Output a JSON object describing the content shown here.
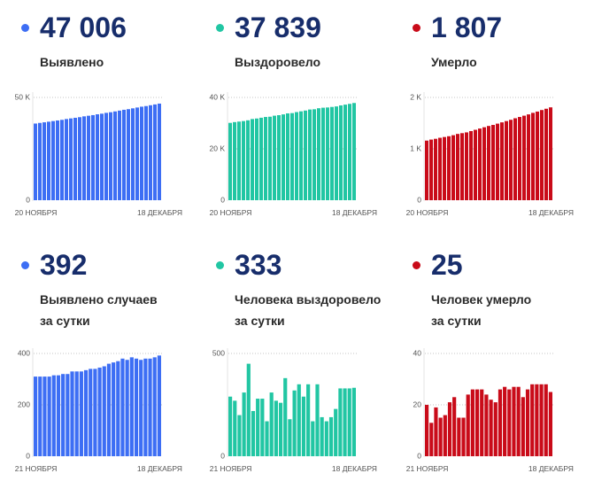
{
  "panels": [
    {
      "color": "#3d6ef4",
      "value": "47 006",
      "label_lines": [
        "Выявлено"
      ]
    },
    {
      "color": "#21c6a3",
      "value": "37 839",
      "label_lines": [
        "Выздоровело"
      ]
    },
    {
      "color": "#c90b19",
      "value": "1 807",
      "label_lines": [
        "Умерло"
      ]
    },
    {
      "color": "#3d6ef4",
      "value": "392",
      "label_lines": [
        "Выявлено случаев",
        "за сутки"
      ]
    },
    {
      "color": "#21c6a3",
      "value": "333",
      "label_lines": [
        "Человека выздоровело",
        "за сутки"
      ]
    },
    {
      "color": "#c90b19",
      "value": "25",
      "label_lines": [
        "Человек умерло",
        "за сутки"
      ]
    }
  ],
  "chart_data": [
    {
      "type": "bar",
      "color": "#3d6ef4",
      "ylim": [
        0,
        50000
      ],
      "y_ticks": [
        {
          "value": 50000,
          "label": "50 K"
        },
        {
          "value": 0,
          "label": "0"
        }
      ],
      "x_tick_labels": [
        "20 НОЯБРЯ",
        "18 ДЕКАБРЯ"
      ],
      "values": [
        37300,
        37600,
        37900,
        38200,
        38500,
        38800,
        39100,
        39500,
        39800,
        40100,
        40400,
        40800,
        41100,
        41400,
        41800,
        42100,
        42500,
        42800,
        43200,
        43600,
        44000,
        44300,
        44700,
        45100,
        45500,
        45800,
        46200,
        46600,
        47006
      ]
    },
    {
      "type": "bar",
      "color": "#21c6a3",
      "ylim": [
        0,
        40000
      ],
      "y_ticks": [
        {
          "value": 40000,
          "label": "40 K"
        },
        {
          "value": 20000,
          "label": "20 K"
        },
        {
          "value": 0,
          "label": "0"
        }
      ],
      "x_tick_labels": [
        "20 НОЯБРЯ",
        "18 ДЕКАБРЯ"
      ],
      "values": [
        30100,
        30400,
        30600,
        30800,
        31100,
        31600,
        31800,
        32100,
        32400,
        32500,
        32900,
        33100,
        33400,
        33800,
        33900,
        34300,
        34600,
        34900,
        35300,
        35400,
        35800,
        36000,
        36100,
        36300,
        36500,
        36900,
        37200,
        37500,
        37839
      ]
    },
    {
      "type": "bar",
      "color": "#c90b19",
      "ylim": [
        0,
        2000
      ],
      "y_ticks": [
        {
          "value": 2000,
          "label": "2 K"
        },
        {
          "value": 1000,
          "label": "1 K"
        },
        {
          "value": 0,
          "label": "0"
        }
      ],
      "x_tick_labels": [
        "20 НОЯБРЯ",
        "18 ДЕКАБРЯ"
      ],
      "values": [
        1160,
        1180,
        1195,
        1215,
        1230,
        1245,
        1265,
        1290,
        1305,
        1320,
        1345,
        1370,
        1395,
        1420,
        1445,
        1465,
        1490,
        1515,
        1540,
        1565,
        1595,
        1620,
        1645,
        1670,
        1700,
        1725,
        1755,
        1780,
        1807
      ]
    },
    {
      "type": "bar",
      "color": "#3d6ef4",
      "ylim": [
        0,
        400
      ],
      "y_ticks": [
        {
          "value": 400,
          "label": "400"
        },
        {
          "value": 200,
          "label": "200"
        },
        {
          "value": 0,
          "label": "0"
        }
      ],
      "x_tick_labels": [
        "21 НОЯБРЯ",
        "18 ДЕКАБРЯ"
      ],
      "values": [
        310,
        310,
        310,
        310,
        315,
        315,
        320,
        320,
        330,
        330,
        330,
        335,
        340,
        340,
        345,
        350,
        360,
        365,
        370,
        380,
        375,
        385,
        380,
        375,
        380,
        380,
        385,
        392
      ]
    },
    {
      "type": "bar",
      "color": "#21c6a3",
      "ylim": [
        0,
        500
      ],
      "y_ticks": [
        {
          "value": 500,
          "label": "500"
        },
        {
          "value": 0,
          "label": "0"
        }
      ],
      "x_tick_labels": [
        "21 НОЯБРЯ",
        "18 ДЕКАБРЯ"
      ],
      "values": [
        290,
        270,
        200,
        310,
        450,
        220,
        280,
        280,
        170,
        310,
        270,
        260,
        380,
        180,
        320,
        350,
        290,
        350,
        170,
        350,
        190,
        170,
        190,
        230,
        330,
        330,
        330,
        333
      ]
    },
    {
      "type": "bar",
      "color": "#c90b19",
      "ylim": [
        0,
        40
      ],
      "y_ticks": [
        {
          "value": 40,
          "label": "40"
        },
        {
          "value": 20,
          "label": "20"
        },
        {
          "value": 0,
          "label": "0"
        }
      ],
      "x_tick_labels": [
        "21 НОЯБРЯ",
        "18 ДЕКАБРЯ"
      ],
      "values": [
        20,
        13,
        19,
        15,
        16,
        21,
        23,
        15,
        15,
        24,
        26,
        26,
        26,
        24,
        22,
        21,
        26,
        27,
        26,
        27,
        27,
        23,
        26,
        28,
        28,
        28,
        28,
        25
      ]
    }
  ]
}
